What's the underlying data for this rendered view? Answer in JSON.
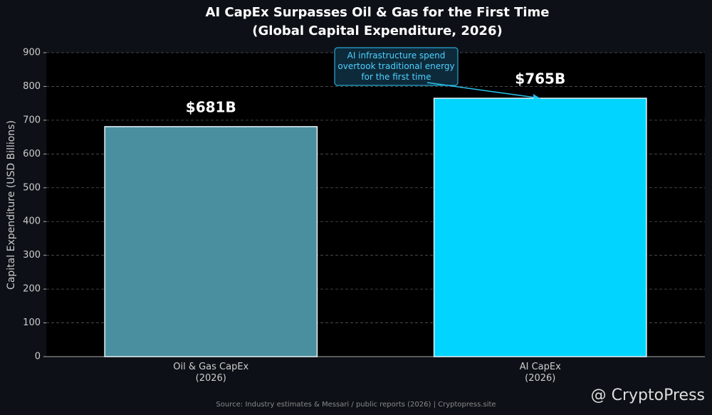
{
  "chart_data": {
    "type": "bar",
    "title": "AI CapEx Surpasses Oil & Gas for the First Time",
    "subtitle": "(Global Capital Expenditure, 2026)",
    "y_label": "Capital Expenditure (USD Billions)",
    "categories": [
      "Oil & Gas CapEx\n(2026)",
      "AI CapEx\n(2026)"
    ],
    "values": [
      681,
      765
    ],
    "value_labels": [
      "$681B",
      "$765B"
    ],
    "colors": [
      "#4a8fa0",
      "#00d4ff"
    ],
    "ylim": [
      0,
      900
    ],
    "yticks": [
      0,
      100,
      200,
      300,
      400,
      500,
      600,
      700,
      800,
      900
    ],
    "grid": true,
    "annotation": "AI infrastructure spend\novertook traditional energy\nfor the first time",
    "source": "Source: Industry estimates & Messari / public reports (2026)  |  Cryptopress.site",
    "watermark": "@ CryptoPress"
  }
}
